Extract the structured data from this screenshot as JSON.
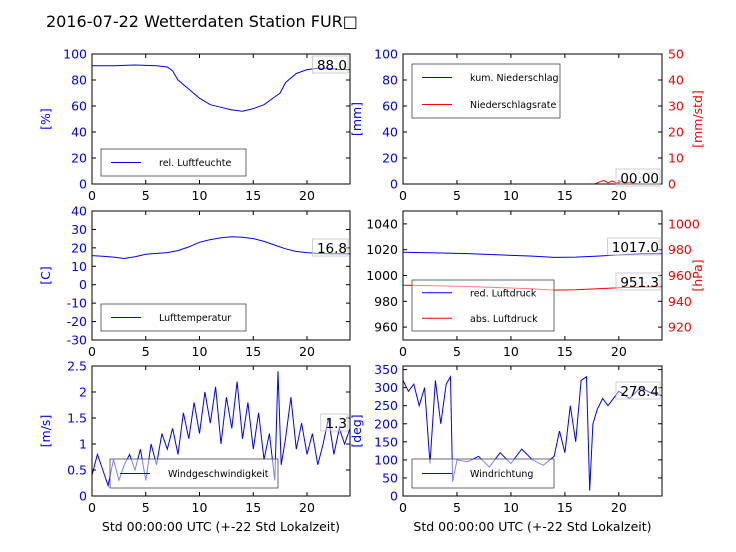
{
  "figure_title": "2016-07-22 Wetterdaten Station FUR□",
  "colors": {
    "primary": "#0000ff",
    "secondary": "#ff0000",
    "axis": "#000000"
  },
  "chart_data": [
    {
      "id": "humidity",
      "type": "line",
      "xlim": [
        0,
        24
      ],
      "ylim": [
        0,
        100
      ],
      "xticks": [
        0,
        5,
        10,
        15,
        20
      ],
      "yticks": [
        0,
        20,
        40,
        60,
        80,
        100
      ],
      "ylabel": "[%]",
      "current_value": "88.0",
      "legend_position": "lower-left",
      "series": [
        {
          "name": "rel. Luftfeuchte",
          "color": "#0000ff",
          "x": [
            0,
            2,
            4,
            6,
            7,
            7.5,
            8,
            9,
            10,
            11,
            12,
            13,
            14,
            15,
            16,
            17,
            17.5,
            18,
            19,
            20,
            21,
            22,
            23,
            24
          ],
          "y": [
            91,
            91,
            91.5,
            91,
            90,
            87,
            80,
            73,
            66,
            61,
            59,
            57,
            56,
            58,
            61,
            67,
            70,
            78,
            85,
            88,
            89,
            89,
            88,
            88
          ]
        }
      ]
    },
    {
      "id": "precipitation",
      "type": "line",
      "xlim": [
        0,
        24
      ],
      "ylim": [
        0,
        100
      ],
      "ylim_right": [
        0,
        50
      ],
      "xticks": [
        0,
        5,
        10,
        15,
        20
      ],
      "yticks": [
        0,
        20,
        40,
        60,
        80,
        100
      ],
      "yticks_right": [
        0,
        10,
        20,
        30,
        40,
        50
      ],
      "ylabel": "[mm]",
      "ylabel_right": "[mm/std]",
      "current_value": "00.00",
      "legend_position": "upper-left",
      "series": [
        {
          "name": "kum. Niederschlag",
          "color": "#0000ff",
          "axis": "left",
          "x": [
            0,
            24
          ],
          "y": [
            0,
            0
          ]
        },
        {
          "name": "Niederschlagsrate",
          "color": "#ff0000",
          "axis": "right",
          "x": [
            0,
            17.8,
            18.2,
            18.6,
            19,
            19.4,
            19.8,
            20.2,
            20.6,
            21,
            21.4,
            22,
            24
          ],
          "y": [
            0,
            0,
            0.8,
            1.4,
            0.5,
            1.1,
            0.4,
            0.9,
            0.3,
            0.7,
            0.2,
            0,
            0
          ]
        }
      ]
    },
    {
      "id": "temperature",
      "type": "line",
      "xlim": [
        0,
        24
      ],
      "ylim": [
        -30,
        40
      ],
      "xticks": [
        0,
        5,
        10,
        15,
        20
      ],
      "yticks": [
        -30,
        -20,
        -10,
        0,
        10,
        20,
        30,
        40
      ],
      "ylabel": "[C]",
      "current_value": "16.8",
      "legend_position": "lower-left",
      "series": [
        {
          "name": "Lufttemperatur",
          "color": "#0000ff",
          "x": [
            0,
            1,
            2,
            3,
            4,
            5,
            6,
            7,
            8,
            9,
            10,
            11,
            12,
            13,
            14,
            15,
            16,
            17,
            18,
            19,
            20,
            21,
            22,
            23,
            24
          ],
          "y": [
            15.8,
            15.4,
            15,
            14.2,
            15.2,
            16.5,
            17,
            17.4,
            18.5,
            20.5,
            23,
            24.5,
            25.5,
            26,
            25.8,
            25,
            23.5,
            21.5,
            19.5,
            18,
            17.4,
            17,
            16.8,
            16.8,
            16.8
          ]
        }
      ]
    },
    {
      "id": "pressure",
      "type": "line",
      "xlim": [
        0,
        24
      ],
      "ylim": [
        950,
        1050
      ],
      "ylim_right": [
        910,
        1010
      ],
      "xticks": [
        0,
        5,
        10,
        15,
        20
      ],
      "yticks": [
        960,
        980,
        1000,
        1020,
        1040
      ],
      "yticks_right": [
        920,
        940,
        960,
        980,
        1000
      ],
      "ylabel_right": "[hPa]",
      "current_values": [
        "1017.0",
        "951.3"
      ],
      "legend_position": "lower-left",
      "series": [
        {
          "name": "red. Luftdruck",
          "color": "#0000ff",
          "axis": "left",
          "x": [
            0,
            3,
            6,
            9,
            12,
            14,
            16,
            18,
            20,
            22,
            24
          ],
          "y": [
            1018,
            1017.5,
            1017,
            1016,
            1015,
            1014,
            1014.3,
            1015,
            1016,
            1016.8,
            1017
          ]
        },
        {
          "name": "abs. Luftdruck",
          "color": "#ff0000",
          "axis": "right",
          "x": [
            0,
            3,
            6,
            9,
            12,
            14,
            16,
            18,
            20,
            22,
            24
          ],
          "y": [
            952.5,
            952,
            951.5,
            950.6,
            949.6,
            948.7,
            949,
            949.7,
            950.5,
            951.1,
            951.3
          ]
        }
      ]
    },
    {
      "id": "wind_speed",
      "type": "line",
      "xlim": [
        0,
        24
      ],
      "ylim": [
        0,
        2.5
      ],
      "xticks": [
        0,
        5,
        10,
        15,
        20
      ],
      "yticks": [
        0,
        0.5,
        1,
        1.5,
        2,
        2.5
      ],
      "ylabel": "[m/s]",
      "xlabel": "Std 00:00:00 UTC (+-22 Std Lokalzeit)",
      "current_value": "1.3",
      "legend_position": "lower-center",
      "series": [
        {
          "name": "Windgeschwindigkeit",
          "color": "#0000ff",
          "x": [
            0,
            0.5,
            1,
            1.5,
            2,
            2.5,
            3,
            3.5,
            4,
            4.5,
            5,
            5.5,
            6,
            6.5,
            7,
            7.5,
            8,
            8.5,
            9,
            9.5,
            10,
            10.5,
            11,
            11.5,
            12,
            12.5,
            13,
            13.5,
            14,
            14.5,
            15,
            15.5,
            16,
            16.5,
            17,
            17.3,
            17.6,
            18,
            18.5,
            19,
            19.5,
            20,
            20.5,
            21,
            21.5,
            22,
            22.5,
            23,
            23.5,
            24
          ],
          "y": [
            0.4,
            0.8,
            0.5,
            0.2,
            0.7,
            0.3,
            0.6,
            0.8,
            0.5,
            0.9,
            0.3,
            1.0,
            0.6,
            1.2,
            0.9,
            1.3,
            0.8,
            1.6,
            1.1,
            1.8,
            1.2,
            2.0,
            1.4,
            2.1,
            1.0,
            1.9,
            1.3,
            2.2,
            1.1,
            1.8,
            0.9,
            1.6,
            0.7,
            1.2,
            0.3,
            2.4,
            0.6,
            1.1,
            1.9,
            0.9,
            1.4,
            0.8,
            1.2,
            0.6,
            1.0,
            1.5,
            0.8,
            1.3,
            1.0,
            1.3
          ]
        }
      ]
    },
    {
      "id": "wind_direction",
      "type": "line",
      "xlim": [
        0,
        24
      ],
      "ylim": [
        0,
        360
      ],
      "xticks": [
        0,
        5,
        10,
        15,
        20
      ],
      "yticks": [
        0,
        50,
        100,
        150,
        200,
        250,
        300,
        350
      ],
      "ylabel": "[deg]",
      "xlabel": "Std 00:00:00 UTC (+-22 Std Lokalzeit)",
      "current_value": "278.4",
      "legend_position": "lower-left",
      "series": [
        {
          "name": "Windrichtung",
          "color": "#0000ff",
          "x": [
            0,
            0.5,
            1,
            1.5,
            2,
            2.5,
            3,
            3.5,
            4,
            4.4,
            4.6,
            5,
            6,
            7,
            8,
            9,
            10,
            11,
            12,
            13,
            14,
            14.5,
            15,
            15.5,
            16,
            16.5,
            17,
            17.3,
            17.6,
            18,
            18.5,
            19,
            20,
            21,
            22,
            23,
            24
          ],
          "y": [
            320,
            290,
            310,
            250,
            300,
            90,
            320,
            200,
            310,
            330,
            40,
            100,
            95,
            110,
            80,
            120,
            90,
            130,
            100,
            85,
            110,
            180,
            120,
            250,
            150,
            320,
            330,
            15,
            200,
            240,
            270,
            250,
            290,
            270,
            300,
            285,
            278
          ]
        }
      ]
    }
  ]
}
